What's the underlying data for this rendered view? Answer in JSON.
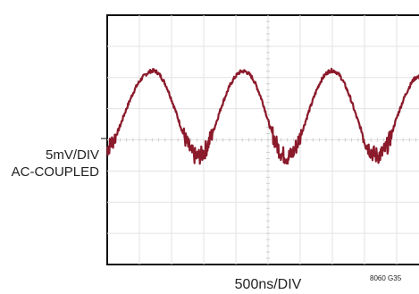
{
  "chart_data": {
    "type": "line",
    "title": "",
    "ylabel_lines": [
      "5mV/DIV",
      "AC-COUPLED"
    ],
    "xlabel": "500ns/DIV",
    "figure_id": "8060 G35",
    "grid": true,
    "x_divisions": 10,
    "y_divisions": 8,
    "xlim": [
      0,
      10
    ],
    "ylim": [
      0,
      8
    ],
    "series": [
      {
        "color": "#8b1a2b",
        "waveform": "sinusoidal ripple with switching noise",
        "x": [
          0.0,
          0.3,
          0.6,
          0.9,
          1.2,
          1.5,
          1.8,
          2.1,
          2.4,
          2.7,
          3.0,
          3.3,
          3.6,
          3.9,
          4.2,
          4.5,
          4.8,
          5.1,
          5.4,
          5.7,
          6.0,
          6.3,
          6.6,
          6.9,
          7.2,
          7.5,
          7.8,
          8.1,
          8.4,
          8.7,
          9.0,
          9.3,
          9.6,
          9.9
        ],
        "y": [
          3.7,
          4.2,
          5.0,
          5.7,
          6.1,
          6.2,
          5.8,
          5.0,
          4.1,
          3.5,
          3.6,
          4.3,
          5.2,
          5.9,
          6.2,
          6.0,
          5.3,
          4.3,
          3.6,
          3.5,
          4.1,
          5.0,
          5.8,
          6.2,
          6.1,
          5.5,
          4.6,
          3.8,
          3.5,
          3.8,
          4.7,
          5.5,
          6.0,
          5.9
        ]
      }
    ]
  }
}
